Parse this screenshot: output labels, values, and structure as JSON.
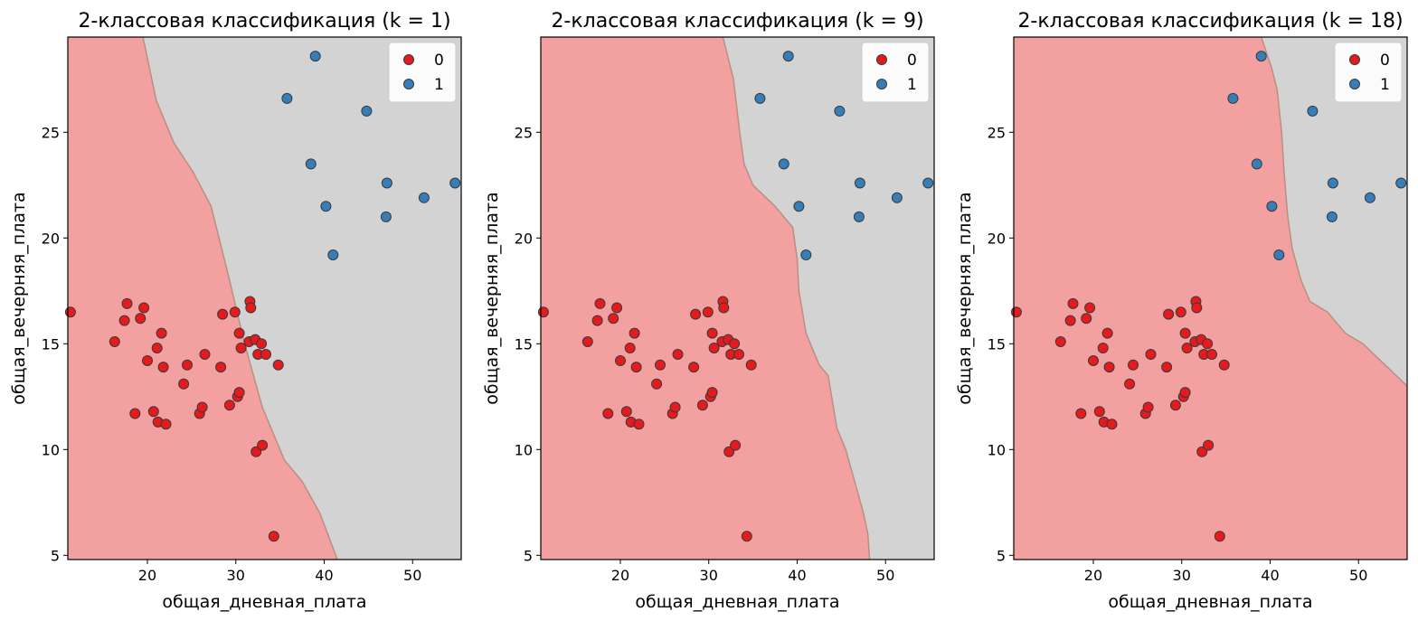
{
  "chart_data": [
    {
      "type": "scatter",
      "title": "2-классовая классификация (k = 1)",
      "xlabel": "общая_дневная_плата",
      "ylabel": "общая_вечерняя_плата",
      "xlim": [
        11.0,
        55.5
      ],
      "ylim": [
        4.8,
        29.5
      ],
      "xticks": [
        20,
        30,
        40,
        50
      ],
      "yticks": [
        5,
        10,
        15,
        20,
        25
      ],
      "legend_position": "top-right",
      "grid": false,
      "region_colors": {
        "0": "#f2a0a0",
        "1": "#d3d3d3"
      },
      "decision_boundary": [
        [
          19.5,
          29.5
        ],
        [
          21.0,
          26.5
        ],
        [
          23.0,
          24.5
        ],
        [
          25.2,
          23.1
        ],
        [
          27.2,
          21.5
        ],
        [
          29.0,
          18.5
        ],
        [
          31.0,
          15.0
        ],
        [
          33.0,
          12.0
        ],
        [
          35.5,
          9.5
        ],
        [
          37.5,
          8.5
        ],
        [
          39.5,
          7.0
        ],
        [
          41.5,
          4.8
        ]
      ],
      "series": [
        {
          "name": "0",
          "color": "#e41a1c",
          "points": [
            [
              11.3,
              16.5
            ],
            [
              16.3,
              15.1
            ],
            [
              17.4,
              16.1
            ],
            [
              17.7,
              16.9
            ],
            [
              18.6,
              11.7
            ],
            [
              19.2,
              16.2
            ],
            [
              19.6,
              16.7
            ],
            [
              20.0,
              14.2
            ],
            [
              20.7,
              11.8
            ],
            [
              21.1,
              14.8
            ],
            [
              21.2,
              11.3
            ],
            [
              21.6,
              15.5
            ],
            [
              21.8,
              13.9
            ],
            [
              22.1,
              11.2
            ],
            [
              24.1,
              13.1
            ],
            [
              24.5,
              14.0
            ],
            [
              25.9,
              11.7
            ],
            [
              26.2,
              12.0
            ],
            [
              26.5,
              14.5
            ],
            [
              28.3,
              13.9
            ],
            [
              28.5,
              16.4
            ],
            [
              29.3,
              12.1
            ],
            [
              29.9,
              16.5
            ],
            [
              30.2,
              12.5
            ],
            [
              30.4,
              12.7
            ],
            [
              30.4,
              15.5
            ],
            [
              30.6,
              14.8
            ],
            [
              31.5,
              15.1
            ],
            [
              31.6,
              17.0
            ],
            [
              31.7,
              16.7
            ],
            [
              32.2,
              15.2
            ],
            [
              32.3,
              9.9
            ],
            [
              32.5,
              14.5
            ],
            [
              32.9,
              15.0
            ],
            [
              33.0,
              10.2
            ],
            [
              33.4,
              14.5
            ],
            [
              34.3,
              5.9
            ],
            [
              34.8,
              14.0
            ]
          ]
        },
        {
          "name": "1",
          "color": "#377eb8",
          "points": [
            [
              35.8,
              26.6
            ],
            [
              38.5,
              23.5
            ],
            [
              39.0,
              28.6
            ],
            [
              40.2,
              21.5
            ],
            [
              41.0,
              19.2
            ],
            [
              44.8,
              26.0
            ],
            [
              47.0,
              21.0
            ],
            [
              47.1,
              22.6
            ],
            [
              51.3,
              21.9
            ],
            [
              54.8,
              22.6
            ]
          ]
        }
      ]
    },
    {
      "type": "scatter",
      "title": "2-классовая классификация (k = 9)",
      "xlabel": "общая_дневная_плата",
      "ylabel": "общая_вечерняя_плата",
      "xlim": [
        11.0,
        55.5
      ],
      "ylim": [
        4.8,
        29.5
      ],
      "xticks": [
        20,
        30,
        40,
        50
      ],
      "yticks": [
        5,
        10,
        15,
        20,
        25
      ],
      "legend_position": "top-right",
      "grid": false,
      "region_colors": {
        "0": "#f2a0a0",
        "1": "#d3d3d3"
      },
      "decision_boundary": [
        [
          31.6,
          29.5
        ],
        [
          32.8,
          27.5
        ],
        [
          33.5,
          25.0
        ],
        [
          34.0,
          23.5
        ],
        [
          35.0,
          22.5
        ],
        [
          37.5,
          21.5
        ],
        [
          39.5,
          20.5
        ],
        [
          40.0,
          19.0
        ],
        [
          40.2,
          17.5
        ],
        [
          41.0,
          15.5
        ],
        [
          41.5,
          15.0
        ],
        [
          42.5,
          14.0
        ],
        [
          43.5,
          13.5
        ],
        [
          44.5,
          11.0
        ],
        [
          45.5,
          10.0
        ],
        [
          46.5,
          8.5
        ],
        [
          47.5,
          7.0
        ],
        [
          48.0,
          6.0
        ],
        [
          48.2,
          4.8
        ]
      ],
      "series": [
        {
          "name": "0",
          "color": "#e41a1c",
          "points": [
            [
              11.3,
              16.5
            ],
            [
              16.3,
              15.1
            ],
            [
              17.4,
              16.1
            ],
            [
              17.7,
              16.9
            ],
            [
              18.6,
              11.7
            ],
            [
              19.2,
              16.2
            ],
            [
              19.6,
              16.7
            ],
            [
              20.0,
              14.2
            ],
            [
              20.7,
              11.8
            ],
            [
              21.1,
              14.8
            ],
            [
              21.2,
              11.3
            ],
            [
              21.6,
              15.5
            ],
            [
              21.8,
              13.9
            ],
            [
              22.1,
              11.2
            ],
            [
              24.1,
              13.1
            ],
            [
              24.5,
              14.0
            ],
            [
              25.9,
              11.7
            ],
            [
              26.2,
              12.0
            ],
            [
              26.5,
              14.5
            ],
            [
              28.3,
              13.9
            ],
            [
              28.5,
              16.4
            ],
            [
              29.3,
              12.1
            ],
            [
              29.9,
              16.5
            ],
            [
              30.2,
              12.5
            ],
            [
              30.4,
              12.7
            ],
            [
              30.4,
              15.5
            ],
            [
              30.6,
              14.8
            ],
            [
              31.5,
              15.1
            ],
            [
              31.6,
              17.0
            ],
            [
              31.7,
              16.7
            ],
            [
              32.2,
              15.2
            ],
            [
              32.3,
              9.9
            ],
            [
              32.5,
              14.5
            ],
            [
              32.9,
              15.0
            ],
            [
              33.0,
              10.2
            ],
            [
              33.4,
              14.5
            ],
            [
              34.3,
              5.9
            ],
            [
              34.8,
              14.0
            ]
          ]
        },
        {
          "name": "1",
          "color": "#377eb8",
          "points": [
            [
              35.8,
              26.6
            ],
            [
              38.5,
              23.5
            ],
            [
              39.0,
              28.6
            ],
            [
              40.2,
              21.5
            ],
            [
              41.0,
              19.2
            ],
            [
              44.8,
              26.0
            ],
            [
              47.0,
              21.0
            ],
            [
              47.1,
              22.6
            ],
            [
              51.3,
              21.9
            ],
            [
              54.8,
              22.6
            ]
          ]
        }
      ]
    },
    {
      "type": "scatter",
      "title": "2-классовая классификация (k = 18)",
      "xlabel": "общая_дневная_плата",
      "ylabel": "общая_вечерняя_плата",
      "xlim": [
        11.0,
        55.5
      ],
      "ylim": [
        4.8,
        29.5
      ],
      "xticks": [
        20,
        30,
        40,
        50
      ],
      "yticks": [
        5,
        10,
        15,
        20,
        25
      ],
      "legend_position": "top-right",
      "grid": false,
      "region_colors": {
        "0": "#f2a0a0",
        "1": "#d3d3d3"
      },
      "decision_boundary": [
        [
          39.0,
          29.5
        ],
        [
          40.2,
          28.0
        ],
        [
          40.8,
          27.0
        ],
        [
          41.3,
          25.0
        ],
        [
          41.6,
          23.0
        ],
        [
          42.0,
          21.0
        ],
        [
          42.5,
          19.5
        ],
        [
          43.5,
          18.0
        ],
        [
          44.5,
          17.0
        ],
        [
          46.5,
          16.5
        ],
        [
          48.5,
          15.5
        ],
        [
          50.5,
          15.0
        ],
        [
          53.0,
          14.0
        ],
        [
          55.5,
          13.0
        ]
      ],
      "series": [
        {
          "name": "0",
          "color": "#e41a1c",
          "points": [
            [
              11.3,
              16.5
            ],
            [
              16.3,
              15.1
            ],
            [
              17.4,
              16.1
            ],
            [
              17.7,
              16.9
            ],
            [
              18.6,
              11.7
            ],
            [
              19.2,
              16.2
            ],
            [
              19.6,
              16.7
            ],
            [
              20.0,
              14.2
            ],
            [
              20.7,
              11.8
            ],
            [
              21.1,
              14.8
            ],
            [
              21.2,
              11.3
            ],
            [
              21.6,
              15.5
            ],
            [
              21.8,
              13.9
            ],
            [
              22.1,
              11.2
            ],
            [
              24.1,
              13.1
            ],
            [
              24.5,
              14.0
            ],
            [
              25.9,
              11.7
            ],
            [
              26.2,
              12.0
            ],
            [
              26.5,
              14.5
            ],
            [
              28.3,
              13.9
            ],
            [
              28.5,
              16.4
            ],
            [
              29.3,
              12.1
            ],
            [
              29.9,
              16.5
            ],
            [
              30.2,
              12.5
            ],
            [
              30.4,
              12.7
            ],
            [
              30.4,
              15.5
            ],
            [
              30.6,
              14.8
            ],
            [
              31.5,
              15.1
            ],
            [
              31.6,
              17.0
            ],
            [
              31.7,
              16.7
            ],
            [
              32.2,
              15.2
            ],
            [
              32.3,
              9.9
            ],
            [
              32.5,
              14.5
            ],
            [
              32.9,
              15.0
            ],
            [
              33.0,
              10.2
            ],
            [
              33.4,
              14.5
            ],
            [
              34.3,
              5.9
            ],
            [
              34.8,
              14.0
            ]
          ]
        },
        {
          "name": "1",
          "color": "#377eb8",
          "points": [
            [
              35.8,
              26.6
            ],
            [
              38.5,
              23.5
            ],
            [
              39.0,
              28.6
            ],
            [
              40.2,
              21.5
            ],
            [
              41.0,
              19.2
            ],
            [
              44.8,
              26.0
            ],
            [
              47.0,
              21.0
            ],
            [
              47.1,
              22.6
            ],
            [
              51.3,
              21.9
            ],
            [
              54.8,
              22.6
            ]
          ]
        }
      ]
    }
  ]
}
